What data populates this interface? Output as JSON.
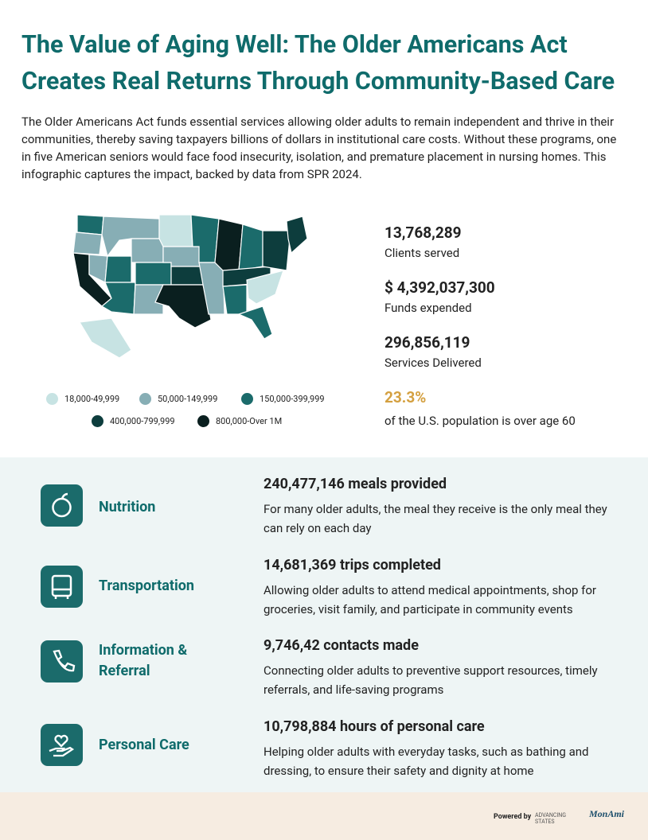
{
  "header": {
    "title": "The Value of Aging Well: The Older Americans Act Creates Real Returns Through Community-Based Care",
    "intro": "The Older Americans Act funds essential services allowing older adults to remain independent and thrive in their communities, thereby saving taxpayers billions of dollars in institutional care costs. Without these programs, one in five American seniors would face food insecurity, isolation, and premature placement in nursing homes. This infographic captures the impact, backed by data from SPR 2024."
  },
  "map_legend": [
    {
      "label": "18,000-49,999",
      "color": "#c7e3e3"
    },
    {
      "label": "50,000-149,999",
      "color": "#87aeb5"
    },
    {
      "label": "150,000-399,999",
      "color": "#1b6b6b"
    },
    {
      "label": "400,000-799,999",
      "color": "#0d3d3d"
    },
    {
      "label": "800,000-Over 1M",
      "color": "#0a1f1f"
    }
  ],
  "stats": [
    {
      "value": "13,768,289",
      "label": "Clients served"
    },
    {
      "value": "$ 4,392,037,300",
      "label": "Funds expended"
    },
    {
      "value": "296,856,119",
      "label": "Services Delivered"
    },
    {
      "value": "23.3%",
      "label": "of the U.S. population is over age 60"
    }
  ],
  "services": [
    {
      "name": "Nutrition",
      "headline": "240,477,146 meals provided",
      "description": "For many older adults, the meal they receive is the only meal they can rely on each day"
    },
    {
      "name": "Transportation",
      "headline": "14,681,369 trips completed",
      "description": "Allowing older adults to attend medical appointments, shop for groceries, visit family, and participate in community events"
    },
    {
      "name": "Information & Referral",
      "headline": "9,746,42 contacts made",
      "description": "Connecting older adults to preventive support resources, timely referrals, and life-saving programs"
    },
    {
      "name": "Personal Care",
      "headline": "10,798,884 hours of personal care",
      "description": "Helping older adults with everyday tasks, such as bathing and dressing, to ensure their safety and dignity at home"
    }
  ],
  "footer": {
    "powered_by": "Powered by",
    "logos": [
      "ADVANCING STATES",
      "MonAmi"
    ]
  }
}
